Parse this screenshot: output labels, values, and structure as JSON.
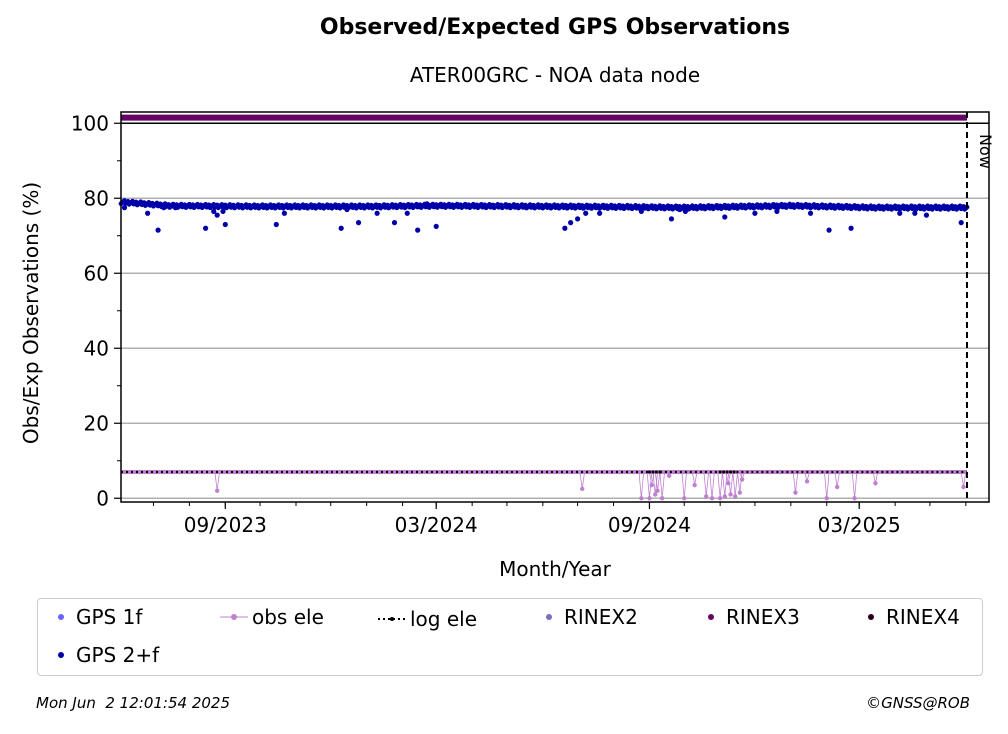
{
  "chart_data": {
    "type": "scatter",
    "title": "Observed/Expected GPS Observations",
    "subtitle": "ATER00GRC - NOA data node",
    "xlabel": "Month/Year",
    "ylabel": "Obs/Exp Observations (%)",
    "xlim": [
      "2023-06-03",
      "2025-06-21"
    ],
    "ylim": [
      -1,
      103
    ],
    "yticks": [
      0,
      20,
      40,
      60,
      80,
      100
    ],
    "ytick_labels": [
      "0",
      "20",
      "40",
      "60",
      "80",
      "100"
    ],
    "xticks": [
      "2023-09-01",
      "2024-03-01",
      "2024-09-01",
      "2025-03-01"
    ],
    "xtick_labels": [
      "09/2023",
      "03/2024",
      "09/2024",
      "03/2025"
    ],
    "grid": "horizontal",
    "now_date": "2025-06-02",
    "now_label": "Now",
    "legend_position": "below",
    "series": [
      {
        "name": "GPS 1f",
        "color": "#6666ff",
        "values": []
      },
      {
        "name": "GPS 2+f",
        "color": "#0000aa",
        "baseline_segments": [
          [
            "2023-06-03",
            79
          ],
          [
            "2023-07-15",
            78
          ],
          [
            "2023-10-01",
            77.8
          ],
          [
            "2024-01-01",
            77.8
          ],
          [
            "2024-03-01",
            78
          ],
          [
            "2024-08-01",
            77.7
          ],
          [
            "2024-10-01",
            77.5
          ],
          [
            "2025-01-01",
            78
          ],
          [
            "2025-03-15",
            77.5
          ],
          [
            "2025-06-02",
            77.5
          ]
        ],
        "outliers": [
          [
            "2023-06-06",
            77.5
          ],
          [
            "2023-06-26",
            76
          ],
          [
            "2023-07-05",
            71.5
          ],
          [
            "2023-07-10",
            77.5
          ],
          [
            "2023-07-20",
            77.5
          ],
          [
            "2023-08-15",
            72
          ],
          [
            "2023-08-22",
            76.5
          ],
          [
            "2023-08-25",
            75.5
          ],
          [
            "2023-08-30",
            76.5
          ],
          [
            "2023-09-01",
            73
          ],
          [
            "2023-10-15",
            73
          ],
          [
            "2023-10-22",
            76
          ],
          [
            "2023-12-10",
            72
          ],
          [
            "2023-12-15",
            77
          ],
          [
            "2023-12-25",
            73.5
          ],
          [
            "2024-01-10",
            76
          ],
          [
            "2024-01-25",
            73.5
          ],
          [
            "2024-02-05",
            76
          ],
          [
            "2024-02-14",
            71.5
          ],
          [
            "2024-02-22",
            78.5
          ],
          [
            "2024-03-01",
            72.5
          ],
          [
            "2024-06-20",
            72
          ],
          [
            "2024-06-25",
            73.5
          ],
          [
            "2024-07-01",
            74.5
          ],
          [
            "2024-07-08",
            76
          ],
          [
            "2024-07-20",
            76
          ],
          [
            "2024-08-25",
            76.5
          ],
          [
            "2024-09-20",
            74.5
          ],
          [
            "2024-09-27",
            77
          ],
          [
            "2024-10-02",
            76.5
          ],
          [
            "2024-11-05",
            75
          ],
          [
            "2024-12-01",
            76
          ],
          [
            "2024-12-20",
            76.5
          ],
          [
            "2025-01-18",
            76
          ],
          [
            "2025-02-03",
            71.5
          ],
          [
            "2025-02-22",
            72
          ],
          [
            "2025-04-05",
            76
          ],
          [
            "2025-04-18",
            76
          ],
          [
            "2025-04-28",
            75.5
          ],
          [
            "2025-05-28",
            73.5
          ]
        ]
      },
      {
        "name": "obs ele",
        "color": "#c080d0",
        "baseline": 7,
        "spikes": [
          [
            "2023-08-25",
            2
          ],
          [
            "2024-07-05",
            2.5
          ],
          [
            "2024-08-25",
            0
          ],
          [
            "2024-09-01",
            0
          ],
          [
            "2024-09-03",
            3.5
          ],
          [
            "2024-09-06",
            1
          ],
          [
            "2024-09-08",
            2
          ],
          [
            "2024-09-12",
            0
          ],
          [
            "2024-09-18",
            6
          ],
          [
            "2024-10-01",
            0
          ],
          [
            "2024-10-10",
            3.5
          ],
          [
            "2024-10-20",
            0.5
          ],
          [
            "2024-10-25",
            0
          ],
          [
            "2024-11-01",
            0
          ],
          [
            "2024-11-05",
            0.5
          ],
          [
            "2024-11-08",
            4
          ],
          [
            "2024-11-10",
            1
          ],
          [
            "2024-11-14",
            0.5
          ],
          [
            "2024-11-18",
            1.5
          ],
          [
            "2024-11-20",
            5
          ],
          [
            "2025-01-05",
            1.5
          ],
          [
            "2025-01-15",
            4.5
          ],
          [
            "2025-02-01",
            0
          ],
          [
            "2025-02-10",
            3
          ],
          [
            "2025-02-25",
            0
          ],
          [
            "2025-03-15",
            4
          ],
          [
            "2025-05-30",
            3
          ]
        ]
      },
      {
        "name": "log ele",
        "color": "#000000",
        "value": 7,
        "gaps": [
          [
            "2024-09-01",
            "2024-09-10"
          ],
          [
            "2024-11-01",
            "2024-11-15"
          ]
        ]
      },
      {
        "name": "RINEX2",
        "color": "#7a6fbd",
        "values": []
      },
      {
        "name": "RINEX3",
        "color": "#660066",
        "value": 101.5,
        "range": [
          "2023-06-03",
          "2025-06-02"
        ]
      },
      {
        "name": "RINEX4",
        "color": "#220022",
        "values": []
      }
    ]
  },
  "footer": {
    "date": "Mon Jun  2 12:01:54 2025",
    "copyright": "©GNSS@ROB"
  }
}
